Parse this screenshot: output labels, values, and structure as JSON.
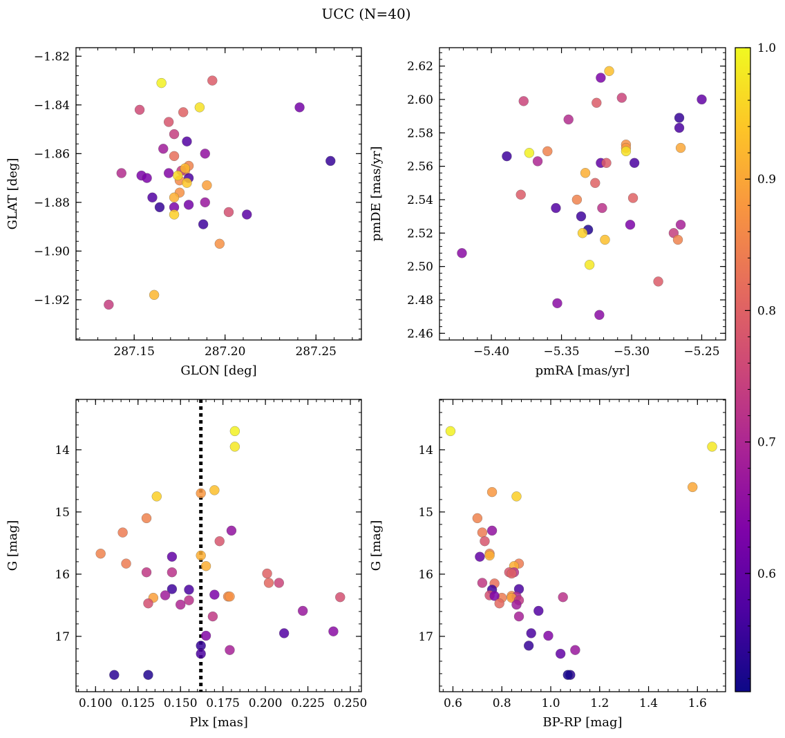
{
  "figure": {
    "suptitle": "UCC (N=40)"
  },
  "colorbar": {
    "colormap": "plasma",
    "min": 0.51,
    "max": 1.0,
    "ticks": [
      0.6,
      0.7,
      0.8,
      0.9,
      1.0
    ],
    "tick_labels": [
      "0.6",
      "0.7",
      "0.8",
      "0.9",
      "1.0"
    ]
  },
  "chart_data": [
    {
      "type": "scatter",
      "name": "glon-glat",
      "xlabel": "GLON [deg]",
      "ylabel": "GLAT [deg]",
      "xlim": [
        287.118,
        287.275
      ],
      "ylim": [
        -1.9365,
        -1.8165
      ],
      "invert_y": false,
      "xticks": [
        287.15,
        287.2,
        287.25
      ],
      "xtick_labels": [
        "287.15",
        "287.20",
        "287.25"
      ],
      "xminor": 0.01,
      "yticks": [
        -1.92,
        -1.9,
        -1.88,
        -1.86,
        -1.84,
        -1.82
      ],
      "ytick_labels": [
        "−1.92",
        "−1.90",
        "−1.88",
        "−1.86",
        "−1.84",
        "−1.82"
      ],
      "yminor": 0.004,
      "x": [
        287.165,
        287.193,
        287.153,
        287.186,
        287.241,
        287.177,
        287.169,
        287.172,
        287.179,
        287.166,
        287.189,
        287.172,
        287.258,
        287.143,
        287.154,
        287.18,
        287.178,
        287.169,
        287.157,
        287.176,
        287.18,
        287.175,
        287.19,
        287.179,
        287.175,
        287.172,
        287.16,
        287.164,
        287.189,
        287.172,
        287.18,
        287.202,
        287.212,
        287.172,
        287.188,
        287.197,
        287.161,
        287.136,
        287.178,
        287.174
      ],
      "y": [
        -1.831,
        -1.83,
        -1.842,
        -1.841,
        -1.841,
        -1.843,
        -1.847,
        -1.852,
        -1.855,
        -1.858,
        -1.86,
        -1.861,
        -1.863,
        -1.868,
        -1.869,
        -1.865,
        -1.867,
        -1.868,
        -1.87,
        -1.867,
        -1.87,
        -1.871,
        -1.873,
        -1.872,
        -1.876,
        -1.878,
        -1.878,
        -1.882,
        -1.88,
        -1.882,
        -1.881,
        -1.884,
        -1.885,
        -1.885,
        -1.889,
        -1.897,
        -1.918,
        -1.922,
        -1.866,
        -1.869
      ],
      "c": [
        0.99,
        0.79,
        0.76,
        0.97,
        0.62,
        0.8,
        0.78,
        0.74,
        0.58,
        0.68,
        0.66,
        0.82,
        0.55,
        0.71,
        0.63,
        0.85,
        0.88,
        0.64,
        0.63,
        0.74,
        0.57,
        0.86,
        0.89,
        0.94,
        0.87,
        0.91,
        0.58,
        0.55,
        0.67,
        0.63,
        0.62,
        0.77,
        0.59,
        0.95,
        0.56,
        0.87,
        0.92,
        0.74,
        0.92,
        0.96
      ]
    },
    {
      "type": "scatter",
      "name": "pm",
      "xlabel": "pmRA [mas/yr]",
      "ylabel": "pmDE [mas/yr]",
      "xlim": [
        -5.437,
        -5.233
      ],
      "ylim": [
        2.456,
        2.631
      ],
      "invert_y": false,
      "xticks": [
        -5.4,
        -5.35,
        -5.3,
        -5.25
      ],
      "xtick_labels": [
        "−5.40",
        "−5.35",
        "−5.30",
        "−5.25"
      ],
      "xminor": 0.01,
      "yticks": [
        2.46,
        2.48,
        2.5,
        2.52,
        2.54,
        2.56,
        2.58,
        2.6,
        2.62
      ],
      "ytick_labels": [
        "2.46",
        "2.48",
        "2.50",
        "2.52",
        "2.54",
        "2.56",
        "2.58",
        "2.60",
        "2.62"
      ],
      "yminor": 0.004,
      "x": [
        -5.316,
        -5.322,
        -5.377,
        -5.325,
        -5.307,
        -5.25,
        -5.345,
        -5.266,
        -5.266,
        -5.304,
        -5.304,
        -5.304,
        -5.373,
        -5.36,
        -5.265,
        -5.389,
        -5.322,
        -5.318,
        -5.298,
        -5.367,
        -5.333,
        -5.326,
        -5.379,
        -5.299,
        -5.339,
        -5.354,
        -5.321,
        -5.336,
        -5.331,
        -5.301,
        -5.265,
        -5.27,
        -5.335,
        -5.319,
        -5.267,
        -5.33,
        -5.421,
        -5.281,
        -5.353,
        -5.323
      ],
      "y": [
        2.617,
        2.613,
        2.599,
        2.598,
        2.601,
        2.6,
        2.588,
        2.589,
        2.583,
        2.573,
        2.571,
        2.569,
        2.568,
        2.569,
        2.571,
        2.566,
        2.562,
        2.562,
        2.562,
        2.563,
        2.556,
        2.55,
        2.543,
        2.541,
        2.54,
        2.535,
        2.535,
        2.53,
        2.522,
        2.525,
        2.525,
        2.52,
        2.52,
        2.516,
        2.516,
        2.501,
        2.508,
        2.491,
        2.478,
        2.471
      ],
      "c": [
        0.93,
        0.63,
        0.75,
        0.79,
        0.75,
        0.6,
        0.71,
        0.55,
        0.57,
        0.87,
        0.88,
        0.97,
        0.99,
        0.85,
        0.9,
        0.56,
        0.6,
        0.79,
        0.57,
        0.7,
        0.91,
        0.8,
        0.79,
        0.8,
        0.85,
        0.58,
        0.72,
        0.56,
        0.53,
        0.63,
        0.69,
        0.74,
        0.95,
        0.93,
        0.85,
        0.98,
        0.65,
        0.79,
        0.65,
        0.65
      ]
    },
    {
      "type": "scatter",
      "name": "plx-g",
      "xlabel": "Plx [mas]",
      "ylabel": "G [mag]",
      "xlim": [
        0.0885,
        0.2565
      ],
      "ylim": [
        13.19,
        17.89
      ],
      "invert_y": true,
      "vline": {
        "x": 0.162,
        "style": "dotted",
        "color": "#000000"
      },
      "xticks": [
        0.1,
        0.125,
        0.15,
        0.175,
        0.2,
        0.225,
        0.25
      ],
      "xtick_labels": [
        "0.100",
        "0.125",
        "0.150",
        "0.175",
        "0.200",
        "0.225",
        "0.250"
      ],
      "xminor": 0.005,
      "yticks": [
        14,
        15,
        16,
        17
      ],
      "ytick_labels": [
        "14",
        "15",
        "16",
        "17"
      ],
      "yminor": 0.2,
      "x": [
        0.182,
        0.182,
        0.17,
        0.162,
        0.136,
        0.13,
        0.18,
        0.173,
        0.116,
        0.103,
        0.145,
        0.162,
        0.118,
        0.165,
        0.13,
        0.145,
        0.201,
        0.202,
        0.208,
        0.145,
        0.155,
        0.141,
        0.134,
        0.17,
        0.178,
        0.179,
        0.244,
        0.131,
        0.15,
        0.155,
        0.169,
        0.222,
        0.165,
        0.211,
        0.24,
        0.162,
        0.179,
        0.162,
        0.111,
        0.131
      ],
      "y": [
        13.7,
        13.95,
        14.65,
        14.7,
        14.75,
        15.1,
        15.3,
        15.47,
        15.33,
        15.67,
        15.72,
        15.7,
        15.83,
        15.87,
        15.97,
        15.97,
        15.99,
        16.14,
        16.14,
        16.24,
        16.25,
        16.34,
        16.38,
        16.33,
        16.36,
        16.36,
        16.37,
        16.47,
        16.49,
        16.42,
        16.68,
        16.59,
        16.99,
        16.95,
        16.92,
        17.15,
        17.22,
        17.28,
        17.62,
        17.62
      ],
      "c": [
        0.99,
        0.98,
        0.93,
        0.88,
        0.95,
        0.85,
        0.66,
        0.78,
        0.84,
        0.85,
        0.6,
        0.91,
        0.84,
        0.91,
        0.73,
        0.72,
        0.8,
        0.81,
        0.75,
        0.56,
        0.57,
        0.68,
        0.89,
        0.63,
        0.86,
        0.87,
        0.77,
        0.77,
        0.7,
        0.72,
        0.73,
        0.67,
        0.64,
        0.58,
        0.65,
        0.55,
        0.69,
        0.57,
        0.54,
        0.53
      ]
    },
    {
      "type": "scatter",
      "name": "cmd",
      "xlabel": "BP-RP [mag]",
      "ylabel": "G [mag]",
      "xlim": [
        0.545,
        1.715
      ],
      "ylim": [
        13.19,
        17.89
      ],
      "invert_y": true,
      "xticks": [
        0.6,
        0.8,
        1.0,
        1.2,
        1.4,
        1.6
      ],
      "xtick_labels": [
        "0.6",
        "0.8",
        "1.0",
        "1.2",
        "1.4",
        "1.6"
      ],
      "xminor": 0.04,
      "yticks": [
        14,
        15,
        16,
        17
      ],
      "ytick_labels": [
        "14",
        "15",
        "16",
        "17"
      ],
      "yminor": 0.2,
      "x": [
        0.59,
        1.66,
        1.58,
        0.76,
        0.86,
        0.7,
        0.72,
        0.76,
        0.73,
        0.75,
        0.75,
        0.71,
        0.87,
        0.85,
        0.83,
        0.85,
        0.84,
        0.72,
        0.77,
        0.76,
        0.87,
        0.75,
        0.8,
        0.84,
        0.86,
        0.84,
        1.05,
        0.77,
        0.87,
        0.79,
        0.86,
        0.95,
        0.87,
        0.92,
        0.99,
        0.91,
        1.1,
        1.04,
        1.08,
        1.07
      ],
      "y": [
        13.7,
        13.95,
        14.6,
        14.68,
        14.75,
        15.1,
        15.33,
        15.3,
        15.47,
        15.67,
        15.7,
        15.72,
        15.83,
        15.87,
        15.97,
        15.97,
        15.99,
        16.14,
        16.15,
        16.25,
        16.24,
        16.34,
        16.38,
        16.35,
        16.36,
        16.38,
        16.37,
        16.35,
        16.42,
        16.47,
        16.49,
        16.59,
        16.68,
        16.95,
        16.99,
        17.15,
        17.22,
        17.28,
        17.62,
        17.62
      ],
      "c": [
        0.99,
        0.98,
        0.9,
        0.88,
        0.95,
        0.85,
        0.84,
        0.66,
        0.78,
        0.85,
        0.91,
        0.6,
        0.84,
        0.91,
        0.78,
        0.72,
        0.8,
        0.73,
        0.82,
        0.56,
        0.57,
        0.77,
        0.84,
        0.87,
        0.7,
        0.89,
        0.72,
        0.63,
        0.73,
        0.81,
        0.68,
        0.58,
        0.69,
        0.57,
        0.64,
        0.55,
        0.67,
        0.6,
        0.54,
        0.52
      ]
    }
  ]
}
